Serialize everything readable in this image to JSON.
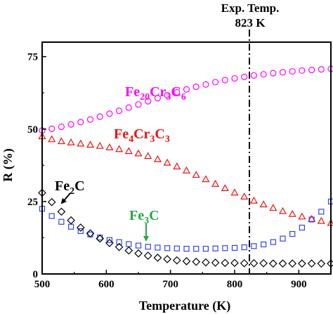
{
  "chart_data": {
    "type": "scatter",
    "xlabel": "Temperature (K)",
    "ylabel": "R (%)",
    "xlim": [
      500,
      950
    ],
    "ylim": [
      0,
      80
    ],
    "xticks": [
      "500",
      "600",
      "700",
      "800",
      "900"
    ],
    "yticks": [
      "0",
      "25",
      "50",
      "75"
    ],
    "grid": false,
    "legend": "none (series labeled inline)",
    "series": [
      {
        "name": "Fe20Cr3C6",
        "marker": "circle",
        "color": "#ff00ff",
        "x": [
          500,
          515,
          530,
          545,
          560,
          575,
          590,
          605,
          620,
          635,
          650,
          665,
          680,
          695,
          710,
          725,
          740,
          755,
          770,
          785,
          800,
          815,
          830,
          845,
          860,
          875,
          890,
          905,
          920,
          935,
          950
        ],
        "y": [
          49.5,
          50.1,
          50.8,
          51.6,
          52.4,
          53.3,
          54.3,
          55.3,
          56.3,
          57.4,
          58.5,
          59.6,
          60.7,
          61.7,
          62.7,
          63.7,
          64.6,
          65.4,
          66.2,
          66.9,
          67.5,
          68.0,
          68.5,
          68.9,
          69.3,
          69.6,
          69.9,
          70.2,
          70.4,
          70.6,
          70.8
        ]
      },
      {
        "name": "Fe4Cr3C3",
        "marker": "triangle",
        "color": "#ee1111",
        "x": [
          500,
          515,
          530,
          545,
          560,
          575,
          590,
          605,
          620,
          635,
          650,
          665,
          680,
          695,
          710,
          725,
          740,
          755,
          770,
          785,
          800,
          815,
          830,
          845,
          860,
          875,
          890,
          905,
          920,
          935,
          950
        ],
        "y": [
          47.5,
          46.5,
          45.8,
          45.4,
          45.0,
          44.6,
          44.2,
          43.7,
          43.1,
          42.4,
          41.6,
          40.7,
          39.6,
          38.4,
          37.1,
          35.7,
          34.2,
          32.7,
          31.1,
          29.6,
          28.1,
          26.7,
          25.3,
          24.0,
          22.8,
          21.7,
          20.7,
          19.8,
          19.0,
          18.3,
          17.6
        ]
      },
      {
        "name": "Fe3C",
        "marker": "square",
        "color": "#3344ee",
        "x": [
          500,
          515,
          530,
          545,
          560,
          575,
          590,
          605,
          620,
          635,
          650,
          665,
          680,
          695,
          710,
          725,
          740,
          755,
          770,
          785,
          800,
          815,
          830,
          845,
          860,
          875,
          890,
          905,
          920,
          935,
          950
        ],
        "y": [
          22.5,
          20.0,
          18.0,
          16.3,
          14.8,
          13.6,
          12.6,
          11.7,
          11.0,
          10.3,
          9.8,
          9.4,
          9.1,
          8.9,
          8.8,
          8.7,
          8.7,
          8.7,
          8.8,
          8.9,
          9.0,
          9.2,
          9.6,
          10.2,
          11.0,
          12.2,
          13.8,
          16.0,
          18.8,
          21.5,
          25.0
        ]
      },
      {
        "name": "Fe2C",
        "marker": "diamond",
        "color": "#000000",
        "x": [
          500,
          515,
          530,
          545,
          560,
          575,
          590,
          605,
          620,
          635,
          650,
          665,
          680,
          695,
          710,
          725,
          740,
          755,
          770,
          785,
          800,
          815,
          830,
          845,
          860,
          875,
          890,
          905,
          920,
          935,
          950
        ],
        "y": [
          28.0,
          24.8,
          21.5,
          18.5,
          16.0,
          14.0,
          12.2,
          10.7,
          9.3,
          8.1,
          7.1,
          6.3,
          5.6,
          5.1,
          4.7,
          4.4,
          4.2,
          4.0,
          3.9,
          3.8,
          3.8,
          3.7,
          3.7,
          3.7,
          3.6,
          3.6,
          3.6,
          3.6,
          3.6,
          3.6,
          3.6
        ]
      }
    ],
    "reference_line": {
      "x": 823,
      "style": "dash-dot",
      "color": "#000000",
      "label_line1": "Exp. Temp.",
      "label_line2": "823 K"
    },
    "annotations": [
      {
        "series": "Fe20Cr3C6",
        "color": "#ff00ff",
        "parts": [
          [
            "Fe",
            ""
          ],
          [
            "20",
            "sub"
          ],
          [
            "Cr",
            ""
          ],
          [
            "3",
            "sub"
          ],
          [
            "C",
            ""
          ],
          [
            "6",
            "sub"
          ]
        ]
      },
      {
        "series": "Fe4Cr3C3",
        "color": "#ee1111",
        "parts": [
          [
            "Fe",
            ""
          ],
          [
            "4",
            "sub"
          ],
          [
            "Cr",
            ""
          ],
          [
            "3",
            "sub"
          ],
          [
            "C",
            ""
          ],
          [
            "3",
            "sub"
          ]
        ]
      },
      {
        "series": "Fe2C",
        "color": "#000000",
        "parts": [
          [
            "Fe",
            ""
          ],
          [
            "2",
            "sub"
          ],
          [
            "C",
            ""
          ]
        ]
      },
      {
        "series": "Fe3C",
        "color": "#22aa44",
        "parts": [
          [
            "Fe",
            ""
          ],
          [
            "3",
            "sub"
          ],
          [
            "C",
            ""
          ]
        ]
      }
    ]
  }
}
